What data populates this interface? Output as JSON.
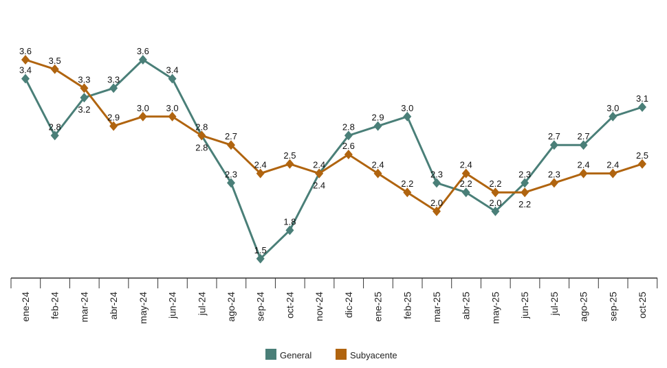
{
  "chart_data": {
    "type": "line",
    "title": "",
    "xlabel": "",
    "ylabel": "",
    "ylim": [
      1.3,
      4.0
    ],
    "grid": false,
    "legend_position": "bottom-center",
    "categories": [
      "ene-24",
      "feb-24",
      "mar-24",
      "abr-24",
      "may-24",
      "jun-24",
      "jul-24",
      "ago-24",
      "sep-24",
      "oct-24",
      "nov-24",
      "dic-24",
      "ene-25",
      "feb-25",
      "mar-25",
      "abr-25",
      "may-25",
      "jun-25",
      "jul-25",
      "ago-25",
      "sep-25",
      "oct-25"
    ],
    "series": [
      {
        "name": "General",
        "color": "#4a7f78",
        "values": [
          3.4,
          2.8,
          3.2,
          3.3,
          3.6,
          3.4,
          2.8,
          2.3,
          1.5,
          1.8,
          2.4,
          2.8,
          2.9,
          3.0,
          2.3,
          2.2,
          2.0,
          2.3,
          2.7,
          2.7,
          3.0,
          3.1
        ]
      },
      {
        "name": "Subyacente",
        "color": "#b0640f",
        "values": [
          3.6,
          3.5,
          3.3,
          2.9,
          3.0,
          3.0,
          2.8,
          2.7,
          2.4,
          2.5,
          2.4,
          2.6,
          2.4,
          2.2,
          2.0,
          2.4,
          2.2,
          2.2,
          2.3,
          2.4,
          2.4,
          2.5
        ]
      }
    ]
  }
}
